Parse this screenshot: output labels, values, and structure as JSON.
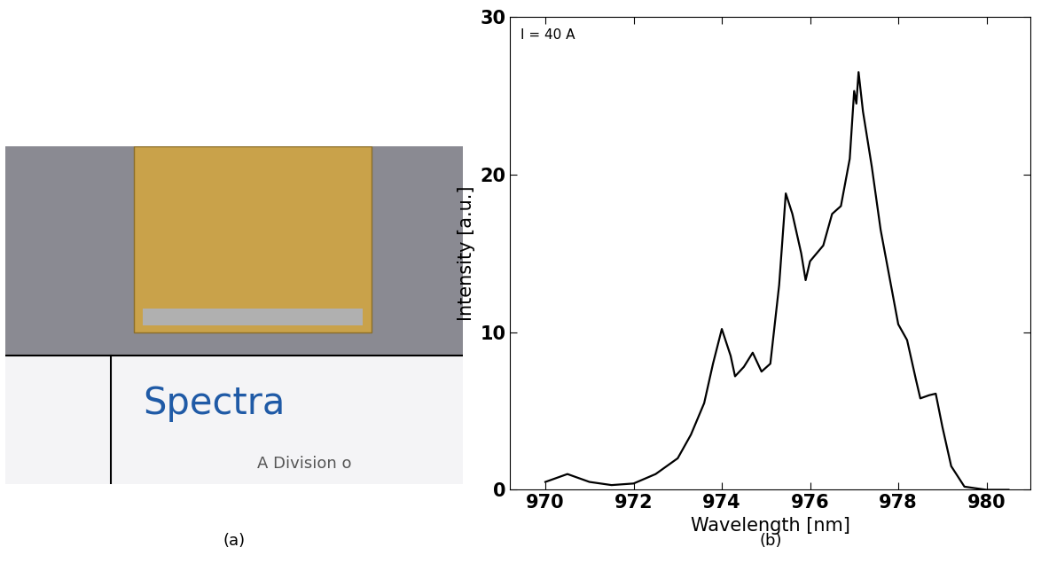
{
  "chart_data": {
    "type": "line",
    "x_label": "Wavelength [nm]",
    "y_label": "Intensity [a.u.]",
    "annotation": "I = 40 A",
    "x": [
      970.0,
      970.5,
      971.0,
      971.5,
      972.0,
      972.5,
      973.0,
      973.3,
      973.6,
      973.8,
      974.0,
      974.2,
      974.3,
      974.5,
      974.7,
      974.9,
      975.1,
      975.3,
      975.45,
      975.6,
      975.8,
      975.9,
      976.0,
      976.3,
      976.5,
      976.7,
      976.9,
      977.0,
      977.05,
      977.1,
      977.2,
      977.4,
      977.6,
      977.8,
      978.0,
      978.2,
      978.4,
      978.5,
      978.7,
      978.85,
      979.0,
      979.2,
      979.5,
      980.0,
      980.5
    ],
    "values": [
      0.5,
      1.0,
      0.5,
      0.3,
      0.4,
      1.0,
      2.0,
      3.5,
      5.5,
      8.0,
      10.2,
      8.5,
      7.2,
      7.8,
      8.7,
      7.5,
      8.0,
      13.0,
      18.8,
      17.5,
      15.0,
      13.3,
      14.5,
      15.5,
      17.5,
      18.0,
      21.0,
      25.3,
      24.5,
      26.5,
      24.0,
      20.5,
      16.5,
      13.5,
      10.5,
      9.5,
      7.0,
      5.8,
      6.0,
      6.1,
      4.0,
      1.5,
      0.2,
      0.0,
      0.0
    ],
    "color": "#000000",
    "xlim": [
      969.2,
      981.0
    ],
    "xticks": [
      970,
      972,
      974,
      976,
      978,
      980
    ],
    "ylim": [
      0,
      30
    ],
    "yticks": [
      0,
      10,
      20,
      30
    ],
    "grid": false
  },
  "figure": {
    "photo_label": "(a)",
    "chart_label": "(b)",
    "photo_texts": [
      "Spectra",
      "A Division o"
    ]
  }
}
